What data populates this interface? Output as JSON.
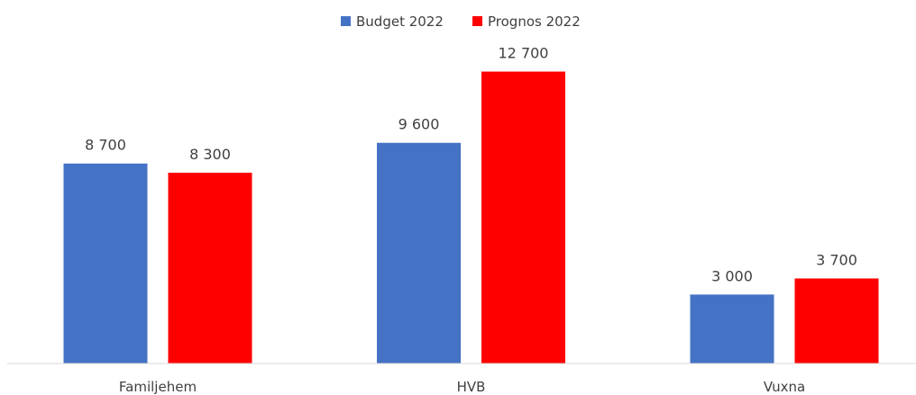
{
  "chart_data": {
    "type": "bar",
    "title": "",
    "xlabel": "",
    "ylabel": "",
    "categories": [
      "Familjehem",
      "HVB",
      "Vuxna"
    ],
    "series": [
      {
        "name": "Budget 2022",
        "color": "#4472c4",
        "values": [
          8700,
          9600,
          3000
        ],
        "labels": [
          "8 700",
          "9 600",
          "3 000"
        ]
      },
      {
        "name": "Prognos 2022",
        "color": "#ff0000",
        "values": [
          8300,
          12700,
          3700
        ],
        "labels": [
          "8 300",
          "12 700",
          "3 700"
        ]
      }
    ],
    "ylim": [
      0,
      13700
    ],
    "grid": false,
    "legend_position": "top-center",
    "axis_color": "#d9d9d9"
  }
}
